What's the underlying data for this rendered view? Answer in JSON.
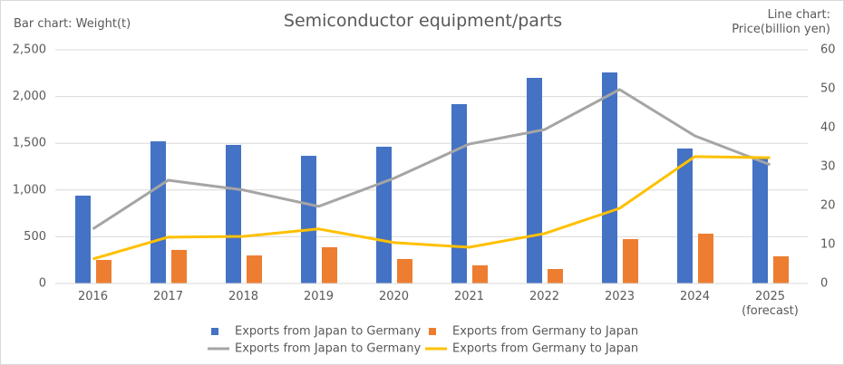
{
  "chart_data": {
    "type": "bar-line",
    "title": "Semiconductor equipment/parts",
    "y_label": "Bar chart: Weight(t)",
    "y2_label": "Line chart:\nPrice(billion yen)",
    "categories": [
      "2016",
      "2017",
      "2018",
      "2019",
      "2020",
      "2021",
      "2022",
      "2023",
      "2024",
      "2025\n(forecast)"
    ],
    "series": [
      {
        "name": "Exports from Japan to Germany",
        "type": "bar",
        "color": "#4472c4",
        "values": [
          940,
          1521,
          1483,
          1366,
          1463,
          1919,
          2200,
          2258,
          1444,
          1347
        ]
      },
      {
        "name": "Exports from Germany to Japan",
        "type": "bar",
        "color": "#ed7d31",
        "values": [
          252,
          359,
          300,
          388,
          262,
          194,
          155,
          475,
          533,
          291
        ]
      },
      {
        "name": "Exports from Japan to Germany",
        "type": "line",
        "axis": "y2",
        "color": "#a5a5a5",
        "values": [
          14.0,
          26.5,
          24.0,
          19.8,
          27.0,
          35.8,
          39.5,
          49.8,
          37.9,
          30.5
        ]
      },
      {
        "name": "Exports from Germany to Japan",
        "type": "line",
        "axis": "y2",
        "color": "#ffc000",
        "values": [
          6.3,
          11.9,
          12.1,
          14.0,
          10.5,
          9.3,
          12.8,
          19.3,
          32.6,
          32.3
        ]
      }
    ],
    "ylim": [
      0,
      2500
    ],
    "yticks": [
      0,
      500,
      {
        "value": 1000,
        "label": "1,000"
      },
      {
        "value": 1500,
        "label": "1,500"
      },
      {
        "value": 2000,
        "label": "2,000"
      },
      {
        "value": 2500,
        "label": "2,500"
      }
    ],
    "y2lim": [
      0,
      60
    ],
    "y2ticks": [
      0,
      10,
      20,
      30,
      40,
      50,
      60
    ],
    "grid": true,
    "legend": "bottom"
  }
}
